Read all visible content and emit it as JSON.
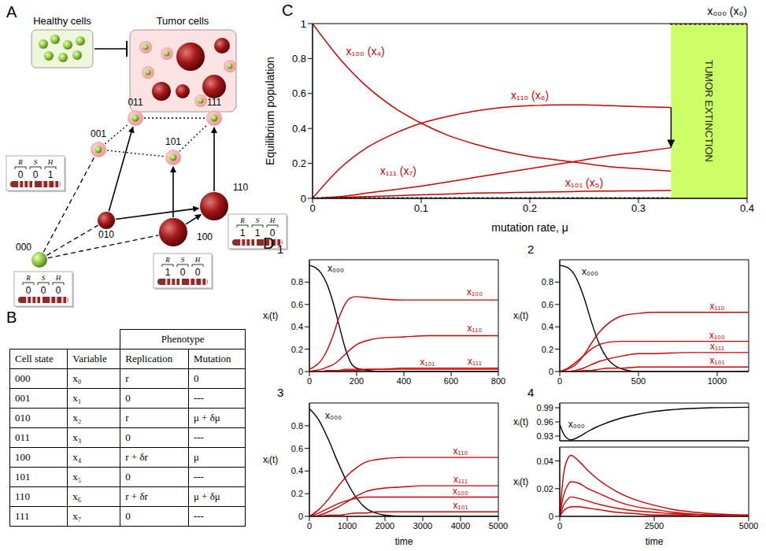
{
  "panel_letters": [
    "A",
    "B",
    "C",
    "D"
  ],
  "diagram": {
    "healthy_label": "Healthy cells",
    "tumor_label": "Tumor cells",
    "bit_labels": [
      "R",
      "S",
      "H"
    ],
    "nodes": [
      "000",
      "001",
      "010",
      "011",
      "100",
      "101",
      "110",
      "111"
    ],
    "state_boxes": [
      "001",
      "000",
      "100",
      "110"
    ]
  },
  "table": {
    "header_group": "Phenotype",
    "columns": [
      "Cell state",
      "Variable",
      "Replication",
      "Mutation"
    ],
    "rows": [
      [
        "000",
        "x₀",
        "r",
        "0"
      ],
      [
        "001",
        "x₁",
        "0",
        "---"
      ],
      [
        "010",
        "x₂",
        "r",
        "μ + δμ"
      ],
      [
        "011",
        "x₃",
        "0",
        "---"
      ],
      [
        "100",
        "x₄",
        "r + δr",
        "μ"
      ],
      [
        "101",
        "x₅",
        "0",
        "---"
      ],
      [
        "110",
        "x₆",
        "r + δr",
        "μ + δμ"
      ],
      [
        "111",
        "x₇",
        "0",
        "---"
      ]
    ]
  },
  "chart_data": [
    {
      "type": "line",
      "xlabel": "mutation rate, μ",
      "ylabel": "Equilibrium population",
      "xlim": [
        0,
        0.4
      ],
      "xticks": [
        0,
        0.1,
        0.2,
        0.3,
        0.4
      ],
      "ylim": [
        0,
        1
      ],
      "yticks": [
        0,
        0.2,
        0.4,
        0.6,
        0.8,
        1
      ],
      "annotations": [
        {
          "text": "TUMOR EXTINCTION",
          "xlim": [
            0.33,
            0.4
          ],
          "color": "#ccff66"
        }
      ],
      "series": [
        {
          "name": "x₁₀₀ (x₄)",
          "color": "#cc0000",
          "x": [
            0,
            0.025,
            0.05,
            0.075,
            0.1,
            0.125,
            0.15,
            0.175,
            0.2,
            0.225,
            0.25,
            0.275,
            0.3,
            0.33
          ],
          "values": [
            1,
            0.8,
            0.64,
            0.52,
            0.43,
            0.36,
            0.31,
            0.27,
            0.24,
            0.22,
            0.2,
            0.18,
            0.17,
            0.155
          ]
        },
        {
          "name": "x₁₁₀ (x₆)",
          "color": "#cc0000",
          "x": [
            0,
            0.025,
            0.05,
            0.075,
            0.1,
            0.125,
            0.15,
            0.175,
            0.2,
            0.225,
            0.25,
            0.275,
            0.3,
            0.33
          ],
          "values": [
            0,
            0.17,
            0.29,
            0.37,
            0.43,
            0.47,
            0.5,
            0.52,
            0.53,
            0.535,
            0.535,
            0.53,
            0.525,
            0.52
          ]
        },
        {
          "name": "x₁₁₁ (x₇)",
          "color": "#cc0000",
          "x": [
            0,
            0.025,
            0.05,
            0.075,
            0.1,
            0.125,
            0.15,
            0.175,
            0.2,
            0.225,
            0.25,
            0.275,
            0.3,
            0.33
          ],
          "values": [
            0,
            0.01,
            0.03,
            0.05,
            0.07,
            0.095,
            0.12,
            0.145,
            0.17,
            0.195,
            0.22,
            0.245,
            0.265,
            0.29
          ]
        },
        {
          "name": "x₁₀₁ (x₅)",
          "color": "#cc0000",
          "x": [
            0,
            0.025,
            0.05,
            0.075,
            0.1,
            0.125,
            0.15,
            0.175,
            0.2,
            0.225,
            0.25,
            0.275,
            0.3,
            0.33
          ],
          "values": [
            0,
            0.005,
            0.01,
            0.015,
            0.02,
            0.025,
            0.03,
            0.032,
            0.035,
            0.037,
            0.04,
            0.042,
            0.043,
            0.045
          ]
        },
        {
          "name": "x₀₀₀ (x₀)",
          "color": "#000000",
          "line_style": "dotted",
          "x": [
            0,
            0.33,
            0.33,
            0.33,
            0.4
          ],
          "values": [
            0,
            0,
            null,
            1,
            1
          ]
        }
      ]
    },
    {
      "type": "line",
      "title": "1",
      "ylabel": "xᵢ(t)",
      "xlim": [
        0,
        800
      ],
      "xticks": [
        0,
        200,
        400,
        600,
        800
      ],
      "ylim": [
        0,
        1
      ],
      "yticks": [
        0,
        0.2,
        0.4,
        0.6,
        0.8
      ],
      "x": [
        0,
        25,
        50,
        75,
        100,
        125,
        150,
        175,
        200,
        250,
        300,
        400,
        500,
        600,
        700,
        800
      ],
      "series": [
        {
          "name": "x₀₀₀",
          "color": "#000000",
          "values": [
            0.95,
            0.93,
            0.88,
            0.78,
            0.62,
            0.42,
            0.22,
            0.08,
            0.03,
            0.01,
            0,
            0,
            0,
            0,
            0,
            0
          ]
        },
        {
          "name": "x₁₀₀",
          "color": "#cc0000",
          "values": [
            0.02,
            0.05,
            0.1,
            0.19,
            0.32,
            0.48,
            0.6,
            0.66,
            0.67,
            0.66,
            0.65,
            0.64,
            0.64,
            0.64,
            0.64,
            0.64
          ]
        },
        {
          "name": "x₁₁₀",
          "color": "#cc0000",
          "values": [
            0,
            0.01,
            0.02,
            0.04,
            0.06,
            0.1,
            0.15,
            0.2,
            0.24,
            0.28,
            0.3,
            0.31,
            0.32,
            0.32,
            0.32,
            0.32
          ]
        },
        {
          "name": "x₁₀₁",
          "color": "#cc0000",
          "values": [
            0,
            0,
            0,
            0.01,
            0.01,
            0.01,
            0.02,
            0.02,
            0.02,
            0.02,
            0.02,
            0.02,
            0.02,
            0.02,
            0.02,
            0.02
          ]
        },
        {
          "name": "x₁₁₁",
          "color": "#cc0000",
          "values": [
            0,
            0,
            0,
            0,
            0,
            0,
            0.01,
            0.01,
            0.01,
            0.02,
            0.02,
            0.03,
            0.03,
            0.03,
            0.03,
            0.03
          ]
        }
      ]
    },
    {
      "type": "line",
      "title": "2",
      "ylabel": "xᵢ(t)",
      "xlim": [
        0,
        1200
      ],
      "xticks": [
        0,
        500,
        1000
      ],
      "ylim": [
        0,
        1
      ],
      "yticks": [
        0,
        0.2,
        0.4,
        0.6,
        0.8
      ],
      "x": [
        0,
        50,
        100,
        150,
        200,
        250,
        300,
        400,
        500,
        600,
        800,
        1000,
        1200
      ],
      "series": [
        {
          "name": "x₀₀₀",
          "color": "#000000",
          "values": [
            0.95,
            0.93,
            0.85,
            0.68,
            0.45,
            0.25,
            0.12,
            0.02,
            0,
            0,
            0,
            0,
            0
          ]
        },
        {
          "name": "x₁₁₀",
          "color": "#cc0000",
          "values": [
            0,
            0.02,
            0.06,
            0.14,
            0.25,
            0.35,
            0.42,
            0.5,
            0.52,
            0.53,
            0.53,
            0.53,
            0.53
          ]
        },
        {
          "name": "x₁₀₀",
          "color": "#cc0000",
          "values": [
            0,
            0.03,
            0.08,
            0.14,
            0.2,
            0.24,
            0.26,
            0.27,
            0.27,
            0.27,
            0.27,
            0.27,
            0.27
          ]
        },
        {
          "name": "x₁₁₁",
          "color": "#cc0000",
          "values": [
            0,
            0,
            0.01,
            0.03,
            0.06,
            0.09,
            0.11,
            0.14,
            0.16,
            0.16,
            0.17,
            0.17,
            0.17
          ]
        },
        {
          "name": "x₁₀₁",
          "color": "#cc0000",
          "values": [
            0,
            0,
            0,
            0.01,
            0.01,
            0.02,
            0.03,
            0.03,
            0.04,
            0.04,
            0.04,
            0.04,
            0.04
          ]
        }
      ]
    },
    {
      "type": "line",
      "title": "3",
      "xlabel": "time",
      "ylabel": "xᵢ(t)",
      "xlim": [
        0,
        5000
      ],
      "xticks": [
        0,
        1000,
        2000,
        3000,
        4000,
        5000
      ],
      "ylim": [
        0,
        1
      ],
      "yticks": [
        0,
        0.2,
        0.4,
        0.6,
        0.8
      ],
      "x": [
        0,
        250,
        500,
        750,
        1000,
        1250,
        1500,
        1750,
        2000,
        2500,
        3000,
        4000,
        5000
      ],
      "series": [
        {
          "name": "x₀₀₀",
          "color": "#000000",
          "values": [
            0.95,
            0.85,
            0.68,
            0.48,
            0.3,
            0.16,
            0.07,
            0.03,
            0.01,
            0,
            0,
            0,
            0
          ]
        },
        {
          "name": "x₁₁₀",
          "color": "#cc0000",
          "values": [
            0,
            0.06,
            0.15,
            0.26,
            0.36,
            0.43,
            0.48,
            0.5,
            0.51,
            0.52,
            0.52,
            0.52,
            0.52
          ]
        },
        {
          "name": "x₁₁₁",
          "color": "#cc0000",
          "values": [
            0,
            0.01,
            0.04,
            0.08,
            0.13,
            0.18,
            0.22,
            0.24,
            0.25,
            0.26,
            0.27,
            0.27,
            0.27
          ]
        },
        {
          "name": "x₁₀₀",
          "color": "#cc0000",
          "values": [
            0,
            0.03,
            0.07,
            0.11,
            0.14,
            0.16,
            0.17,
            0.17,
            0.17,
            0.17,
            0.17,
            0.17,
            0.17
          ]
        },
        {
          "name": "x₁₀₁",
          "color": "#cc0000",
          "values": [
            0,
            0,
            0.01,
            0.01,
            0.02,
            0.03,
            0.03,
            0.04,
            0.04,
            0.04,
            0.04,
            0.04,
            0.04
          ]
        }
      ]
    },
    {
      "type": "line",
      "title": "4",
      "xlabel": "time",
      "ylabel": "xᵢ(t)",
      "xlim": [
        0,
        5000
      ],
      "xticks": [
        0,
        2500,
        5000
      ],
      "ylim": [
        0,
        0.05
      ],
      "yticks": [
        0,
        0.02,
        0.04
      ],
      "y2lim": [
        0.92,
        1
      ],
      "y2ticks": [
        0.93,
        0.96,
        0.99
      ],
      "x": [
        0,
        100,
        200,
        300,
        500,
        750,
        1000,
        1500,
        2000,
        2500,
        3000,
        4000,
        5000
      ],
      "series": [
        {
          "name": "x₀₀₀",
          "color": "#000000",
          "axis": "y2",
          "values": [
            0.955,
            0.935,
            0.925,
            0.922,
            0.928,
            0.94,
            0.95,
            0.965,
            0.975,
            0.982,
            0.986,
            0.99,
            0.991
          ]
        },
        {
          "color": "#cc0000",
          "values": [
            0,
            0.03,
            0.041,
            0.044,
            0.04,
            0.033,
            0.027,
            0.018,
            0.012,
            0.008,
            0.005,
            0.002,
            0.001
          ]
        },
        {
          "color": "#cc0000",
          "values": [
            0,
            0.015,
            0.022,
            0.025,
            0.024,
            0.02,
            0.017,
            0.011,
            0.007,
            0.005,
            0.003,
            0.001,
            0
          ]
        },
        {
          "color": "#cc0000",
          "values": [
            0,
            0.008,
            0.012,
            0.014,
            0.013,
            0.011,
            0.009,
            0.006,
            0.004,
            0.003,
            0.002,
            0.001,
            0
          ]
        },
        {
          "color": "#cc0000",
          "values": [
            0,
            0.004,
            0.006,
            0.007,
            0.007,
            0.006,
            0.005,
            0.003,
            0.002,
            0.001,
            0.001,
            0,
            0
          ]
        }
      ]
    }
  ]
}
